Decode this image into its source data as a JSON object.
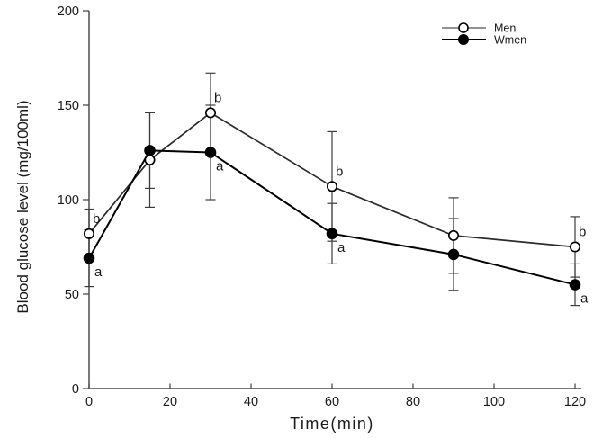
{
  "chart_data": {
    "type": "line",
    "title": "",
    "xlabel": "Time(min)",
    "ylabel": "Blood glucose level (mg/100ml)",
    "x": [
      0,
      15,
      30,
      60,
      90,
      120
    ],
    "xticks": [
      0,
      20,
      40,
      60,
      80,
      100,
      120
    ],
    "yticks": [
      0,
      50,
      100,
      150,
      200
    ],
    "xlim": [
      0,
      122
    ],
    "ylim": [
      0,
      200
    ],
    "grid": false,
    "legend_position": "top-right",
    "series": [
      {
        "name": "Men",
        "marker": "open-circle",
        "line_color": "#2b2b2b",
        "values": [
          82,
          121,
          146,
          107,
          81,
          75
        ],
        "errors": [
          13,
          25,
          21,
          29,
          20,
          16
        ]
      },
      {
        "name": "Wmen",
        "marker": "filled-circle",
        "line_color": "#000000",
        "values": [
          69,
          126,
          125,
          82,
          71,
          55
        ],
        "errors": [
          15,
          20,
          25,
          16,
          19,
          11
        ]
      }
    ],
    "annotations": [
      {
        "series": "Men",
        "x": 0,
        "label": "b"
      },
      {
        "series": "Wmen",
        "x": 0,
        "label": "a"
      },
      {
        "series": "Men",
        "x": 30,
        "label": "b"
      },
      {
        "series": "Wmen",
        "x": 30,
        "label": "a"
      },
      {
        "series": "Men",
        "x": 60,
        "label": "b"
      },
      {
        "series": "Wmen",
        "x": 60,
        "label": "a"
      },
      {
        "series": "Men",
        "x": 120,
        "label": "b"
      },
      {
        "series": "Wmen",
        "x": 120,
        "label": "a"
      }
    ]
  },
  "colors": {
    "background": "#ffffff",
    "axis": "#4d4d4d",
    "error_bar": "#3c3c3c",
    "text": "#1a1a1a",
    "marker_stroke": "#000000",
    "marker_open_fill": "#ffffff",
    "marker_filled_fill": "#000000"
  }
}
